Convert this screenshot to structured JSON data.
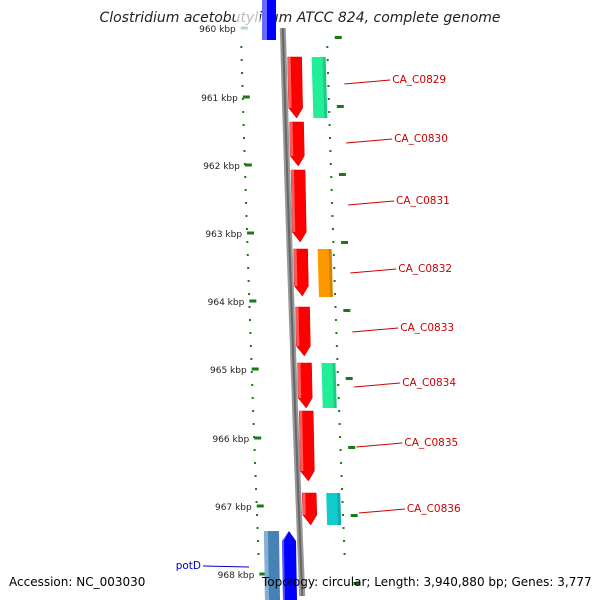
{
  "title": "Clostridium acetobutylicum ATCC 824, complete genome",
  "footer": {
    "accession": "Accession: NC_003030",
    "summary": "Topology: circular; Length: 3,940,880 bp; Genes: 3,777"
  },
  "scale": {
    "ticks": [
      "960 kbp",
      "961 kbp",
      "962 kbp",
      "963 kbp",
      "964 kbp",
      "965 kbp",
      "966 kbp",
      "967 kbp",
      "968 kbp"
    ]
  },
  "colors": {
    "gene_forward": "#ff0000",
    "gene_backbone": "#777777",
    "tick": "#1a7a1a",
    "label_red": "#cc0000",
    "label_blue": "#0000cc",
    "blue_gene": "#0000ff",
    "steelblue_gene": "#4682b4",
    "cog_green": "#22ee99",
    "cog_orange": "#ff9900",
    "cog_teal": "#11cccc"
  },
  "genes": [
    {
      "label": "CA_C0829",
      "cog_color": "cog_green"
    },
    {
      "label": "CA_C0830",
      "cog_color": null
    },
    {
      "label": "CA_C0831",
      "cog_color": null
    },
    {
      "label": "CA_C0832",
      "cog_color": "cog_orange"
    },
    {
      "label": "CA_C0833",
      "cog_color": null
    },
    {
      "label": "CA_C0834",
      "cog_color": "cog_green"
    },
    {
      "label": "CA_C0835",
      "cog_color": null
    },
    {
      "label": "CA_C0836",
      "cog_color": "cog_teal"
    }
  ],
  "other_genes": [
    {
      "label": "potD"
    }
  ]
}
